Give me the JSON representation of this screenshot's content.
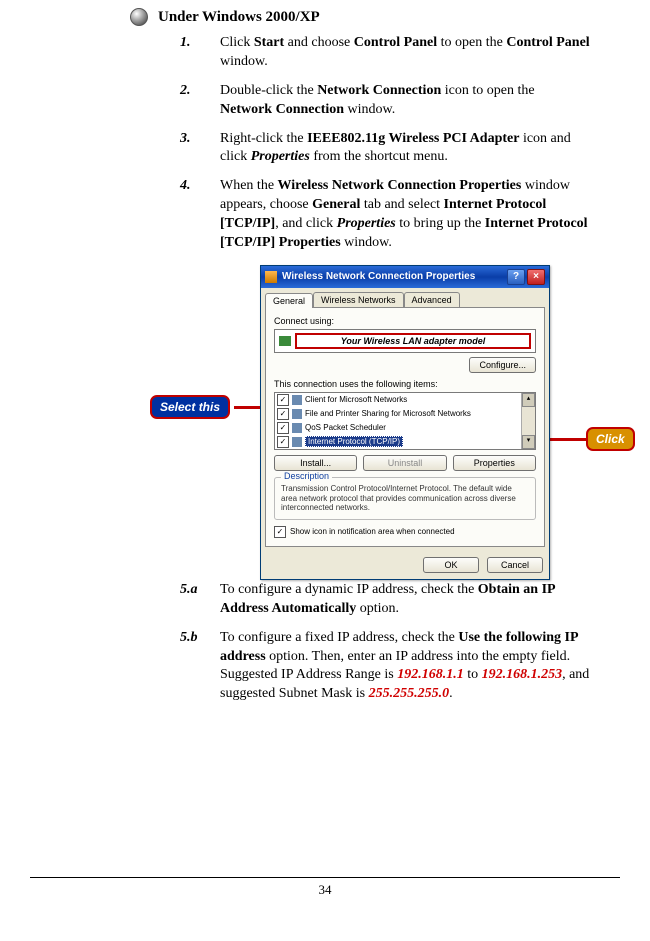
{
  "page_number": "34",
  "heading": "Under Windows 2000/XP",
  "steps": [
    {
      "num": "1.",
      "pre": "Click ",
      "b1": "Start",
      "mid1": " and choose ",
      "b2": "Control Panel",
      "mid2": " to open the ",
      "b3": "Control Panel",
      "post": " window."
    },
    {
      "num": "2.",
      "pre": "Double-click the ",
      "b1": "Network Connection",
      "mid1": " icon to open the ",
      "b2": "Network Connection",
      "post": " window."
    },
    {
      "num": "3.",
      "pre": "Right-click the ",
      "b1": "IEEE802.11g Wireless PCI Adapter",
      "mid1": " icon and click ",
      "bi1": "Properties",
      "post": " from the shortcut menu."
    },
    {
      "num": "4.",
      "pre": "When the ",
      "b1": "Wireless Network Connection Proper­ties",
      "mid1": " window appears, choose ",
      "b2": "General",
      "mid2": " tab and select ",
      "b3": "Internet Protocol [TCP/IP]",
      "mid3": ", and click ",
      "bi1": "Properties",
      "mid4": " to bring up the ",
      "b4": "Internet Protocol [TCP/IP] Proper­ties",
      "post": " window."
    }
  ],
  "dialog": {
    "title": "Wireless Network Connection Properties",
    "tabs": [
      "General",
      "Wireless Networks",
      "Advanced"
    ],
    "active_tab": 0,
    "connect_using_label": "Connect using:",
    "adapter_name": "Your Wireless LAN adapter model",
    "configure_btn": "Configure...",
    "items_label": "This connection uses the following items:",
    "items": [
      {
        "checked": true,
        "label": "Client for Microsoft Networks",
        "selected": false
      },
      {
        "checked": true,
        "label": "File and Printer Sharing for Microsoft Networks",
        "selected": false
      },
      {
        "checked": true,
        "label": "QoS Packet Scheduler",
        "selected": false
      },
      {
        "checked": true,
        "label": "Internet Protocol (TCP/IP)",
        "selected": true
      }
    ],
    "install_btn": "Install...",
    "uninstall_btn": "Uninstall",
    "properties_btn": "Properties",
    "description_label": "Description",
    "description_text": "Transmission Control Protocol/Internet Protocol. The default wide area network protocol that provides communication across diverse interconnected networks.",
    "show_icon_label": "Show icon in notification area when connected",
    "show_icon_checked": true,
    "ok_btn": "OK",
    "cancel_btn": "Cancel"
  },
  "callouts": {
    "select": "Select this",
    "click": "Click"
  },
  "substeps": {
    "a": {
      "num": "5.a",
      "pre": "To configure a dynamic IP address, check the ",
      "b1": "Obtain an IP Address Automatically",
      "post": " option."
    },
    "b": {
      "num": "5.b",
      "pre": "To configure a fixed IP address, check the ",
      "b1": "Use the following IP address",
      "mid1": " option.  Then, enter an IP address into the empty field.  Suggested IP Address Range is ",
      "r1": "192.168.1.1",
      "mid2": " to ",
      "r2": "192.168.1.253",
      "mid3": ", and suggested Subnet Mask is ",
      "r3": "255.255.255.0",
      "post": "."
    }
  },
  "colors": {
    "red": "#c00000",
    "blue_callout": "#0030a0",
    "yellow_callout": "#d89000",
    "xp_titlebar": "#2a6bd8",
    "xp_face": "#ece9d8"
  }
}
